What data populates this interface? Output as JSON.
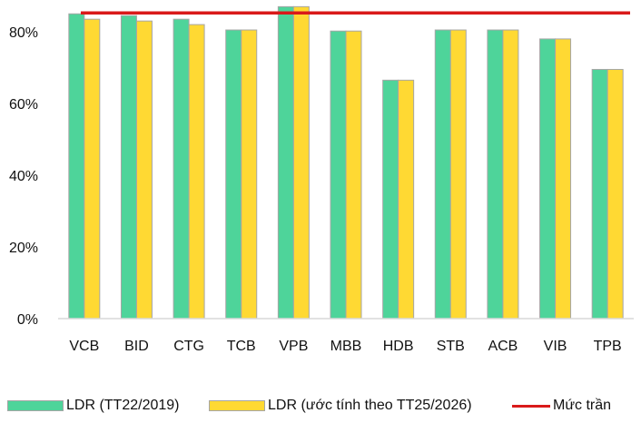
{
  "chart_data": {
    "type": "bar",
    "categories": [
      "VCB",
      "BID",
      "CTG",
      "TCB",
      "VPB",
      "MBB",
      "HDB",
      "STB",
      "ACB",
      "VIB",
      "TPB"
    ],
    "series": [
      {
        "name": "LDR (TT22/2019)",
        "values": [
          85,
          84.5,
          83.5,
          80.5,
          87,
          80.2,
          66.5,
          80.5,
          80.5,
          78,
          69.5
        ],
        "color": "#4ed49a"
      },
      {
        "name": "LDR (ước tính theo TT25/2026)",
        "values": [
          83.5,
          83,
          82,
          80.5,
          87,
          80.2,
          66.5,
          80.5,
          80.5,
          78,
          69.5
        ],
        "color": "#ffd933"
      }
    ],
    "reference_line": {
      "name": "Mức trần",
      "value": 85,
      "color": "#d91a1a"
    },
    "yticks": [
      "0%",
      "20%",
      "40%",
      "60%",
      "80%"
    ],
    "ytick_values": [
      0,
      20,
      40,
      60,
      80
    ],
    "ylim": [
      0,
      90
    ],
    "grid": false,
    "legend_position": "bottom",
    "bar_border_color": "#a6a6a6",
    "axis_color": "#d9d9d9"
  }
}
